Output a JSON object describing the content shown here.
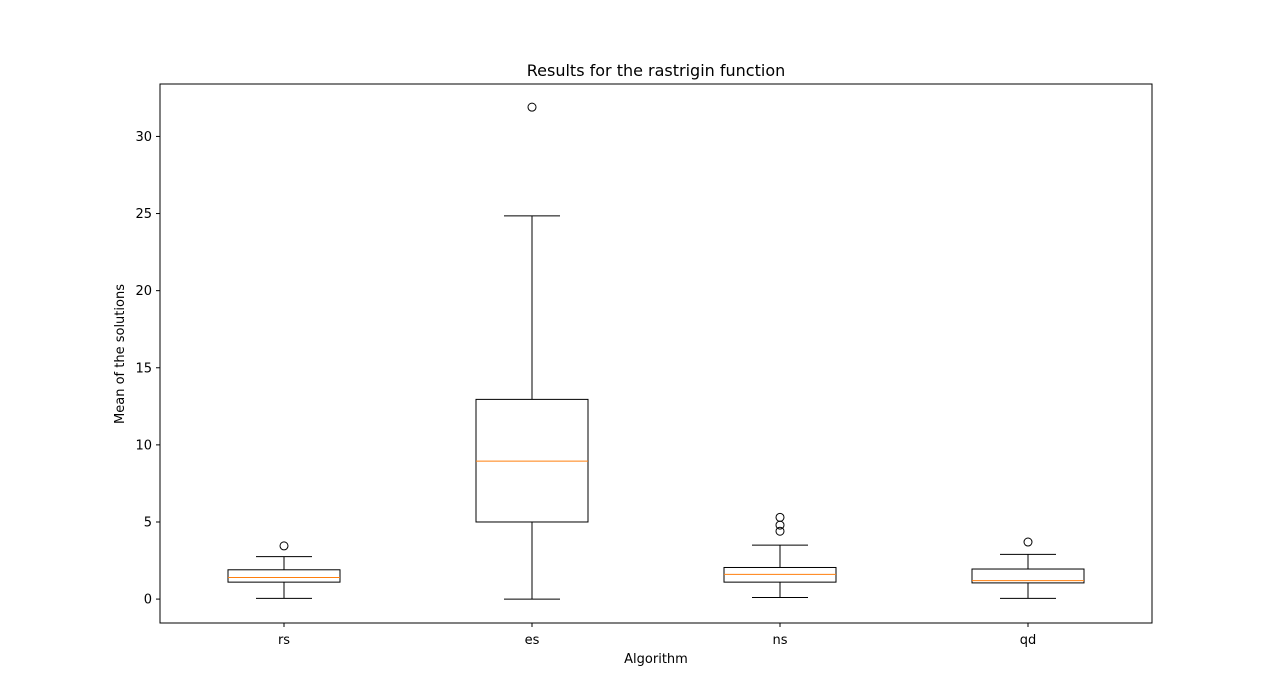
{
  "chart_data": {
    "type": "box",
    "title": "Results for the rastrigin function",
    "xlabel": "Algorithm",
    "ylabel": "Mean of the solutions",
    "ylim": [
      -1.55,
      33.4
    ],
    "yticks": [
      0,
      5,
      10,
      15,
      20,
      25,
      30
    ],
    "grid": false,
    "categories": [
      "rs",
      "es",
      "ns",
      "qd"
    ],
    "boxes": [
      {
        "name": "rs",
        "whisker_low": 0.05,
        "q1": 1.1,
        "median": 1.4,
        "q3": 1.9,
        "whisker_high": 2.75,
        "outliers": [
          3.45
        ]
      },
      {
        "name": "es",
        "whisker_low": 0.0,
        "q1": 5.0,
        "median": 8.95,
        "q3": 12.95,
        "whisker_high": 24.85,
        "outliers": [
          31.9
        ]
      },
      {
        "name": "ns",
        "whisker_low": 0.1,
        "q1": 1.1,
        "median": 1.6,
        "q3": 2.05,
        "whisker_high": 3.5,
        "outliers": [
          4.4,
          4.8,
          5.3
        ]
      },
      {
        "name": "qd",
        "whisker_low": 0.05,
        "q1": 1.05,
        "median": 1.2,
        "q3": 1.95,
        "whisker_high": 2.9,
        "outliers": [
          3.7
        ]
      }
    ],
    "colors": {
      "box": "#000000",
      "median": "#ff7f0e",
      "background": "#ffffff"
    }
  }
}
